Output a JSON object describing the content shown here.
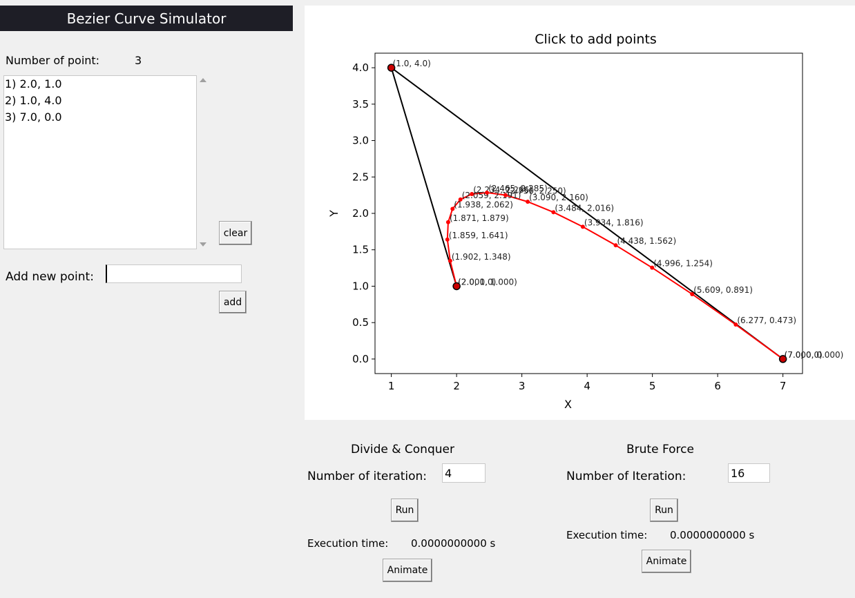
{
  "app": {
    "title": "Bezier Curve Simulator"
  },
  "left_panel": {
    "num_points_label": "Number of point:",
    "num_points_value": "3",
    "points": [
      "1) 2.0, 1.0",
      "2) 1.0, 4.0",
      "3) 7.0, 0.0"
    ],
    "clear_label": "clear",
    "add_point_label": "Add new point:",
    "add_point_value": "",
    "add_label": "add"
  },
  "divide_conquer": {
    "heading": "Divide & Conquer",
    "iter_label": "Number of iteration:",
    "iter_value": "4",
    "run_label": "Run",
    "exec_label": "Execution time:",
    "exec_value": "0.0000000000 s",
    "animate_label": "Animate"
  },
  "brute_force": {
    "heading": "Brute Force",
    "iter_label": "Number of Iteration:",
    "iter_value": "16",
    "run_label": "Run",
    "exec_label": "Execution time:",
    "exec_value": "0.0000000000 s",
    "animate_label": "Animate"
  },
  "colors": {
    "control": "#000000",
    "curve": "#ff0000",
    "point_fill": "#cc0000"
  },
  "chart_data": {
    "type": "line",
    "title": "Click to add points",
    "xlabel": "X",
    "ylabel": "Y",
    "xlim": [
      0.75,
      7.3
    ],
    "ylim": [
      -0.2,
      4.2
    ],
    "xticks": [
      1,
      2,
      3,
      4,
      5,
      6,
      7
    ],
    "yticks": [
      0.0,
      0.5,
      1.0,
      1.5,
      2.0,
      2.5,
      3.0,
      3.5,
      4.0
    ],
    "series": [
      {
        "role": "control",
        "x": [
          2.0,
          1.0,
          7.0
        ],
        "y": [
          1.0,
          4.0,
          0.0
        ],
        "labels": [
          "(2.0, 1.0)",
          "(1.0, 4.0)",
          "(7.0, 0.0)"
        ]
      },
      {
        "role": "curve",
        "x": [
          2.0,
          1.902,
          1.859,
          1.871,
          1.938,
          2.059,
          2.234,
          2.465,
          2.75,
          3.09,
          3.484,
          3.934,
          4.438,
          4.996,
          5.609,
          6.277,
          7.0
        ],
        "y": [
          1.0,
          1.348,
          1.641,
          1.879,
          2.062,
          2.191,
          2.266,
          2.285,
          2.25,
          2.16,
          2.016,
          1.816,
          1.562,
          1.254,
          0.891,
          0.473,
          0.0
        ],
        "labels": [
          "(2.000, 1.000)",
          "(1.902, 1.348)",
          "(1.859, 1.641)",
          "(1.871, 1.879)",
          "(1.938, 2.062)",
          "(2.059, 2.191)",
          "(2.234, 2.266)",
          "(2.465, 2.285)",
          "(2.750, 2.250)",
          "(3.090, 2.160)",
          "(3.484, 2.016)",
          "(3.934, 1.816)",
          "(4.438, 1.562)",
          "(4.996, 1.254)",
          "(5.609, 0.891)",
          "(6.277, 0.473)",
          "(7.000, 0.000)"
        ]
      }
    ]
  }
}
